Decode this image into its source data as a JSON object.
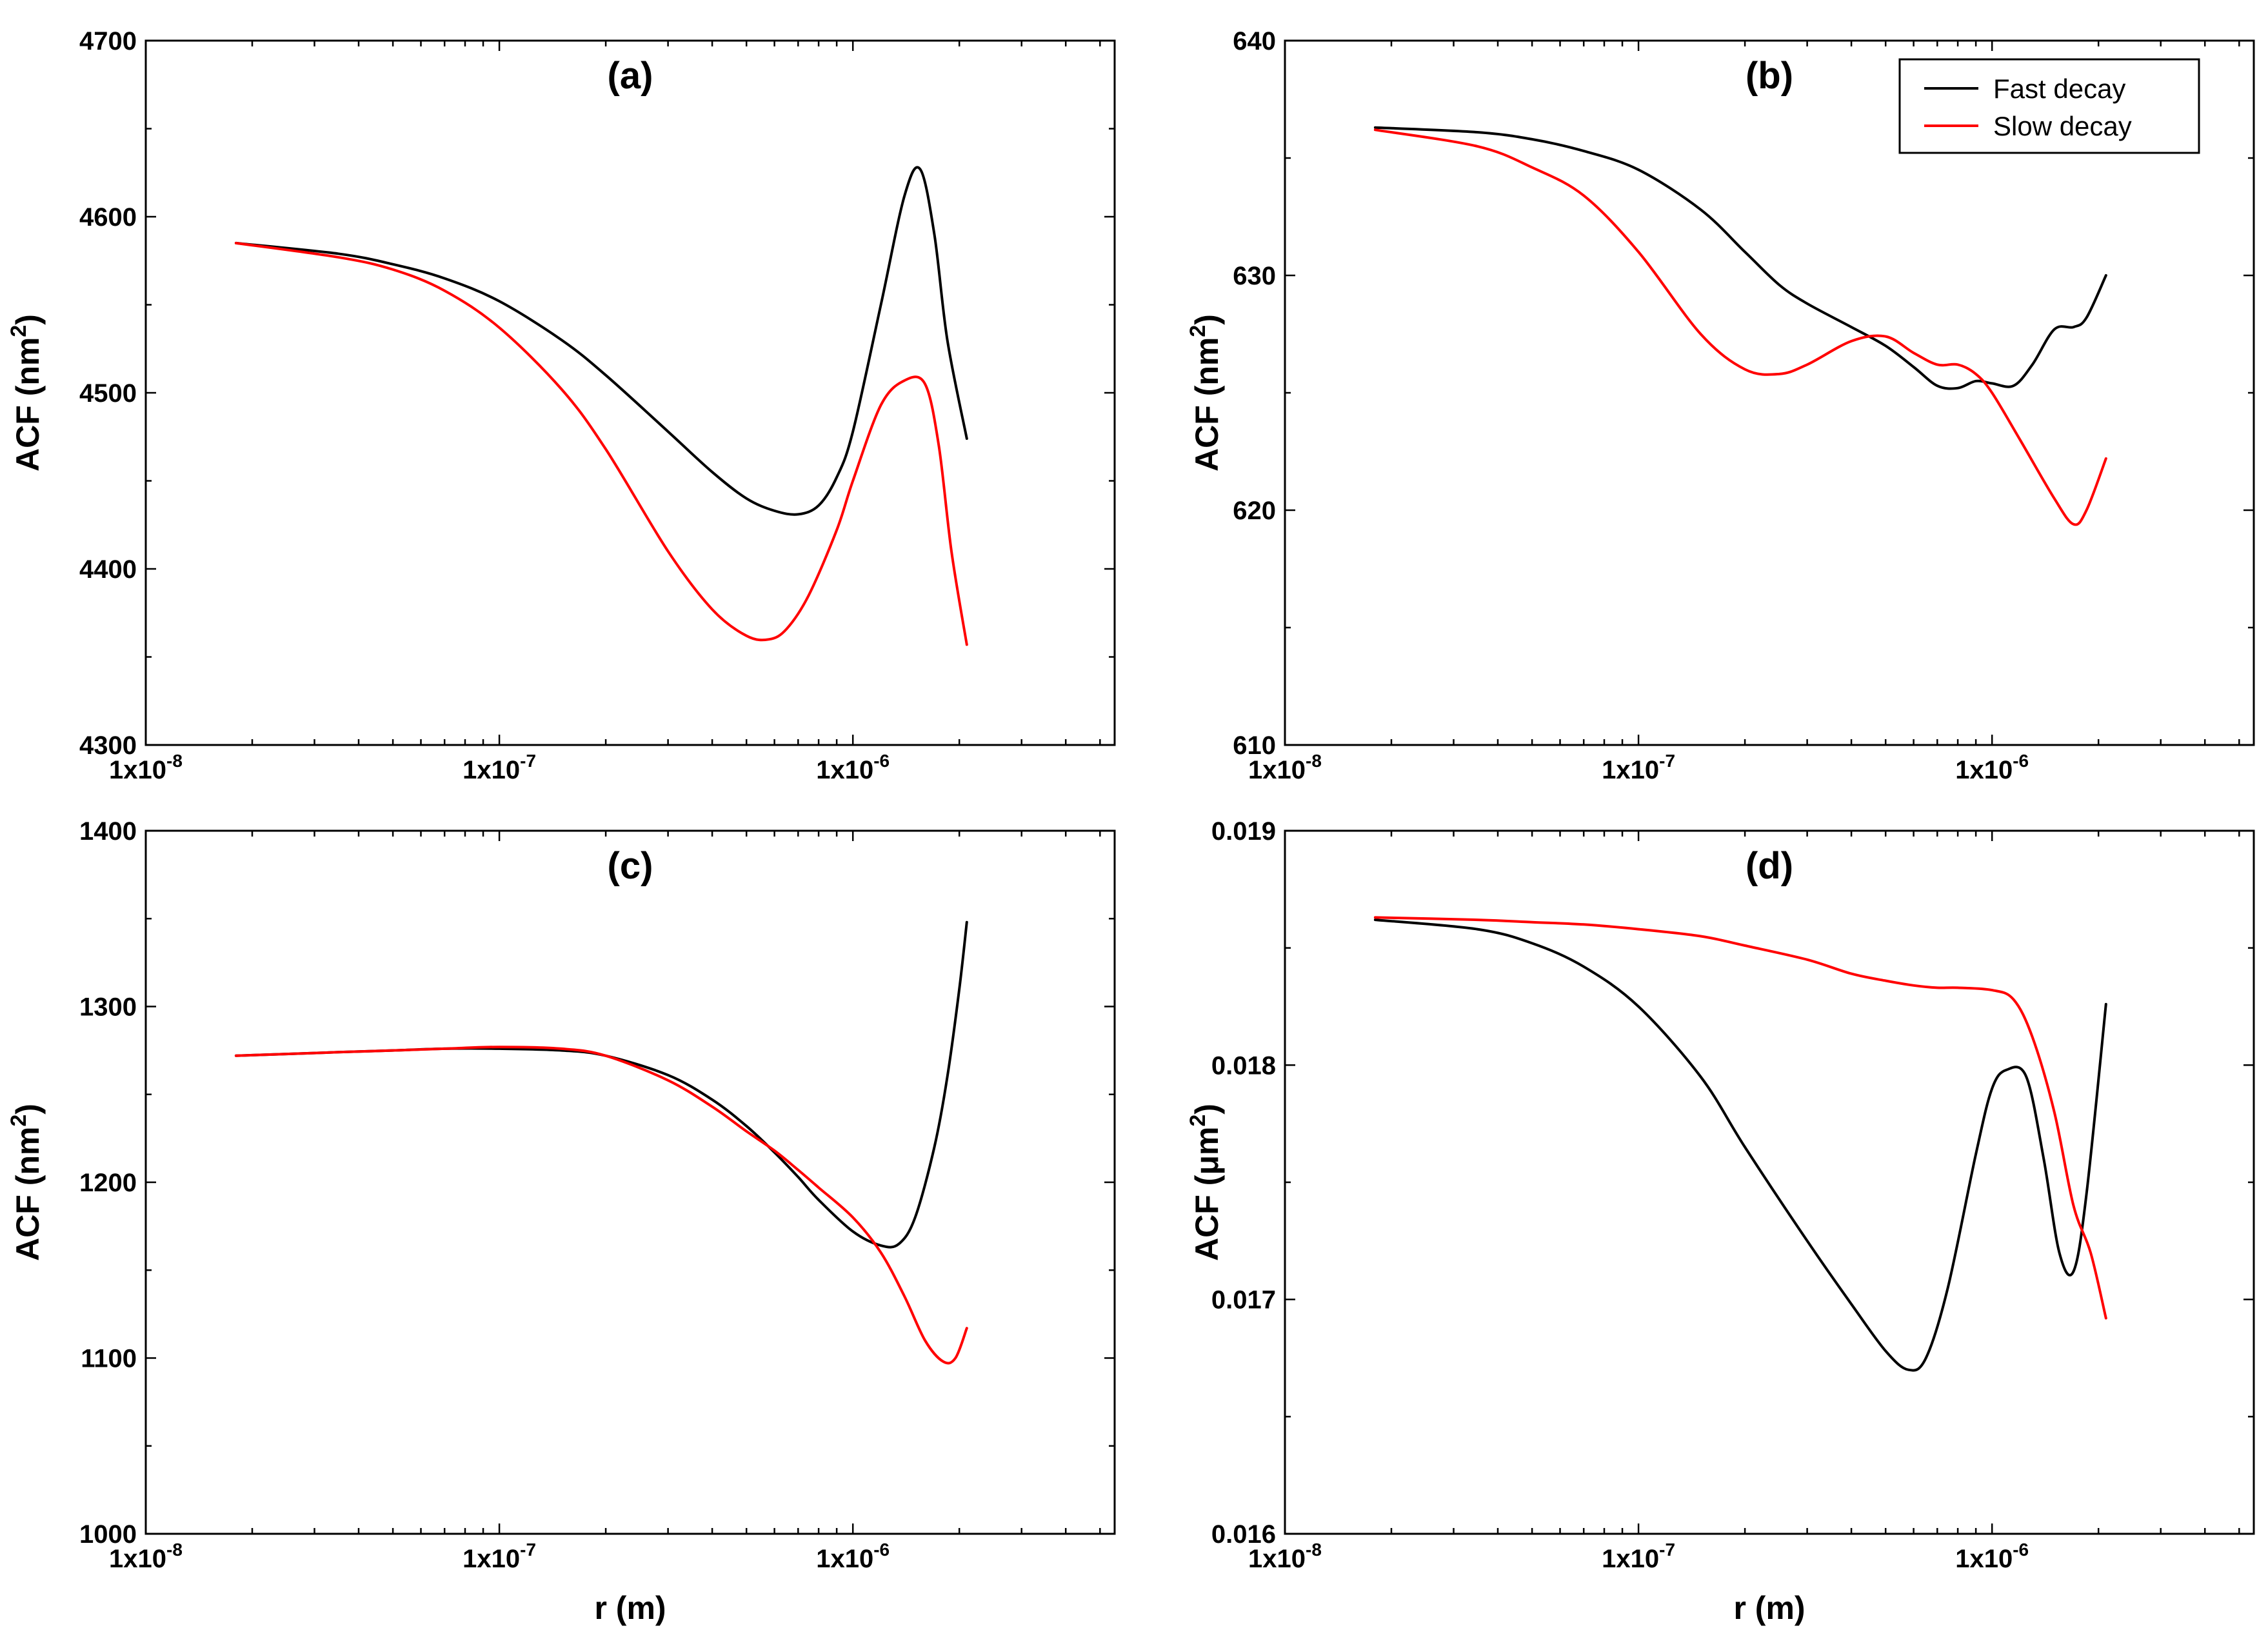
{
  "colors": {
    "fast": "#000000",
    "slow": "#ff0000",
    "frame": "#000000"
  },
  "legend": {
    "entries": [
      "Fast decay",
      "Slow decay"
    ],
    "placement": "top-right of panel (b)"
  },
  "chart_data": [
    {
      "type": "line",
      "title": "(a)",
      "xlabel": "",
      "ylabel_main": "ACF (nm",
      "ylabel_sup": "2",
      "ylabel_close": ")",
      "xscale": "log",
      "xlim": [
        1e-08,
        5.5e-06
      ],
      "ylim": [
        4300,
        4700
      ],
      "xticks": [
        1e-08,
        1e-07,
        1e-06
      ],
      "xtick_labels": [
        {
          "mantissa": "1x10",
          "exp": "-8"
        },
        {
          "mantissa": "1x10",
          "exp": "-7"
        },
        {
          "mantissa": "1x10",
          "exp": "-6"
        }
      ],
      "yticks": [
        4300,
        4400,
        4500,
        4600,
        4700
      ],
      "ytick_labels": [
        "4300",
        "4400",
        "4500",
        "4600",
        "4700"
      ],
      "series": [
        {
          "name": "Fast decay",
          "color": "#000000",
          "x": [
            1.8e-08,
            3.5e-08,
            5e-08,
            7e-08,
            1e-07,
            1.5e-07,
            2e-07,
            3e-07,
            4e-07,
            5e-07,
            6e-07,
            7e-07,
            8e-07,
            9e-07,
            1e-06,
            1.2e-06,
            1.4e-06,
            1.55e-06,
            1.7e-06,
            1.85e-06,
            2.1e-06
          ],
          "y": [
            4585,
            4579,
            4573,
            4565,
            4552,
            4530,
            4510,
            4478,
            4455,
            4440,
            4433,
            4431,
            4436,
            4452,
            4478,
            4550,
            4612,
            4627,
            4590,
            4530,
            4474
          ]
        },
        {
          "name": "Slow decay",
          "color": "#ff0000",
          "x": [
            1.8e-08,
            3.5e-08,
            5e-08,
            7e-08,
            1e-07,
            1.5e-07,
            2e-07,
            3e-07,
            4e-07,
            5e-07,
            5.8e-07,
            6.5e-07,
            7.5e-07,
            9e-07,
            1e-06,
            1.2e-06,
            1.4e-06,
            1.6e-06,
            1.75e-06,
            1.9e-06,
            2.1e-06
          ],
          "y": [
            4585,
            4577,
            4570,
            4558,
            4537,
            4502,
            4468,
            4410,
            4377,
            4362,
            4360,
            4366,
            4385,
            4422,
            4450,
            4493,
            4507,
            4505,
            4470,
            4410,
            4357
          ]
        }
      ]
    },
    {
      "type": "line",
      "title": "(b)",
      "xlabel": "",
      "ylabel_main": "ACF (nm",
      "ylabel_sup": "2",
      "ylabel_close": ")",
      "xscale": "log",
      "xlim": [
        1e-08,
        5.5e-06
      ],
      "ylim": [
        610,
        640
      ],
      "xticks": [
        1e-08,
        1e-07,
        1e-06
      ],
      "xtick_labels": [
        {
          "mantissa": "1x10",
          "exp": "-8"
        },
        {
          "mantissa": "1x10",
          "exp": "-7"
        },
        {
          "mantissa": "1x10",
          "exp": "-6"
        }
      ],
      "yticks": [
        610,
        620,
        630,
        640
      ],
      "ytick_labels": [
        "610",
        "620",
        "630",
        "640"
      ],
      "series": [
        {
          "name": "Fast decay",
          "color": "#000000",
          "x": [
            1.8e-08,
            3.5e-08,
            5e-08,
            7e-08,
            1e-07,
            1.5e-07,
            2e-07,
            2.5e-07,
            3e-07,
            4e-07,
            5e-07,
            6e-07,
            7e-07,
            8e-07,
            9e-07,
            1e-06,
            1.15e-06,
            1.3e-06,
            1.5e-06,
            1.7e-06,
            1.85e-06,
            2.1e-06
          ],
          "y": [
            636.3,
            636.1,
            635.8,
            635.3,
            634.5,
            632.8,
            631.0,
            629.6,
            628.8,
            627.8,
            627.0,
            626.1,
            625.3,
            625.2,
            625.5,
            625.4,
            625.3,
            626.2,
            627.7,
            627.8,
            628.2,
            630.0
          ]
        },
        {
          "name": "Slow decay",
          "color": "#ff0000",
          "x": [
            1.8e-08,
            3.5e-08,
            5e-08,
            7e-08,
            1e-07,
            1.5e-07,
            2e-07,
            2.5e-07,
            3e-07,
            4e-07,
            5e-07,
            6e-07,
            7e-07,
            8e-07,
            9e-07,
            1e-06,
            1.2e-06,
            1.5e-06,
            1.7e-06,
            1.85e-06,
            2.1e-06
          ],
          "y": [
            636.2,
            635.5,
            634.6,
            633.4,
            631.0,
            627.5,
            626.0,
            625.8,
            626.2,
            627.2,
            627.4,
            626.7,
            626.2,
            626.2,
            625.8,
            625.0,
            623.0,
            620.5,
            619.4,
            620.0,
            622.2
          ]
        }
      ]
    },
    {
      "type": "line",
      "title": "(c)",
      "xlabel": "r (m)",
      "ylabel_main": "ACF (nm",
      "ylabel_sup": "2",
      "ylabel_close": ")",
      "xscale": "log",
      "xlim": [
        1e-08,
        5.5e-06
      ],
      "ylim": [
        1000,
        1400
      ],
      "xticks": [
        1e-08,
        1e-07,
        1e-06
      ],
      "xtick_labels": [
        {
          "mantissa": "1x10",
          "exp": "-8"
        },
        {
          "mantissa": "1x10",
          "exp": "-7"
        },
        {
          "mantissa": "1x10",
          "exp": "-6"
        }
      ],
      "yticks": [
        1000,
        1100,
        1200,
        1300,
        1400
      ],
      "ytick_labels": [
        "1000",
        "1100",
        "1200",
        "1300",
        "1400"
      ],
      "series": [
        {
          "name": "Fast decay",
          "color": "#000000",
          "x": [
            1.8e-08,
            3.5e-08,
            5e-08,
            7e-08,
            1e-07,
            1.5e-07,
            2e-07,
            3e-07,
            4e-07,
            5e-07,
            6e-07,
            7e-07,
            8e-07,
            1e-06,
            1.2e-06,
            1.35e-06,
            1.5e-06,
            1.7e-06,
            1.85e-06,
            2e-06,
            2.1e-06
          ],
          "y": [
            1272,
            1274,
            1275,
            1276,
            1276,
            1275,
            1272,
            1261,
            1247,
            1232,
            1217,
            1203,
            1190,
            1172,
            1164,
            1165,
            1180,
            1220,
            1260,
            1310,
            1348
          ]
        },
        {
          "name": "Slow decay",
          "color": "#ff0000",
          "x": [
            1.8e-08,
            3.5e-08,
            5e-08,
            7e-08,
            1e-07,
            1.5e-07,
            2e-07,
            3e-07,
            4e-07,
            5e-07,
            6e-07,
            7e-07,
            8e-07,
            1e-06,
            1.2e-06,
            1.4e-06,
            1.6e-06,
            1.8e-06,
            1.95e-06,
            2.1e-06
          ],
          "y": [
            1272,
            1274,
            1275,
            1276,
            1277,
            1276,
            1272,
            1258,
            1243,
            1229,
            1218,
            1207,
            1197,
            1180,
            1160,
            1135,
            1110,
            1098,
            1100,
            1117
          ]
        }
      ]
    },
    {
      "type": "line",
      "title": "(d)",
      "xlabel": "r (m)",
      "ylabel_main": "ACF (μm",
      "ylabel_sup": "2",
      "ylabel_close": ")",
      "xscale": "log",
      "xlim": [
        1e-08,
        5.5e-06
      ],
      "ylim": [
        0.016,
        0.019
      ],
      "xticks": [
        1e-08,
        1e-07,
        1e-06
      ],
      "xtick_labels": [
        {
          "mantissa": "1x10",
          "exp": "-8"
        },
        {
          "mantissa": "1x10",
          "exp": "-7"
        },
        {
          "mantissa": "1x10",
          "exp": "-6"
        }
      ],
      "yticks": [
        0.016,
        0.017,
        0.018,
        0.019
      ],
      "ytick_labels": [
        "0.016",
        "0.017",
        "0.018",
        "0.019"
      ],
      "series": [
        {
          "name": "Fast decay",
          "color": "#000000",
          "x": [
            1.8e-08,
            3.5e-08,
            5e-08,
            7e-08,
            1e-07,
            1.5e-07,
            2e-07,
            3e-07,
            4e-07,
            5e-07,
            5.8e-07,
            6.5e-07,
            7.5e-07,
            9e-07,
            1e-06,
            1.1e-06,
            1.25e-06,
            1.4e-06,
            1.55e-06,
            1.7e-06,
            1.85e-06,
            2.1e-06
          ],
          "y": [
            0.01862,
            0.01858,
            0.01852,
            0.01842,
            0.01825,
            0.01795,
            0.01765,
            0.01725,
            0.01698,
            0.01678,
            0.0167,
            0.01675,
            0.01705,
            0.01762,
            0.0179,
            0.01798,
            0.01795,
            0.0176,
            0.0172,
            0.01712,
            0.01745,
            0.01826
          ]
        },
        {
          "name": "Slow decay",
          "color": "#ff0000",
          "x": [
            1.8e-08,
            3.5e-08,
            5e-08,
            7e-08,
            1e-07,
            1.5e-07,
            2e-07,
            3e-07,
            4e-07,
            5e-07,
            6e-07,
            7e-07,
            8e-07,
            1e-06,
            1.15e-06,
            1.3e-06,
            1.5e-06,
            1.7e-06,
            1.9e-06,
            2.1e-06
          ],
          "y": [
            0.01863,
            0.01862,
            0.01861,
            0.0186,
            0.01858,
            0.01855,
            0.01851,
            0.01845,
            0.01839,
            0.01836,
            0.01834,
            0.01833,
            0.01833,
            0.01832,
            0.01828,
            0.01812,
            0.0178,
            0.0174,
            0.0172,
            0.01692
          ]
        }
      ]
    }
  ]
}
